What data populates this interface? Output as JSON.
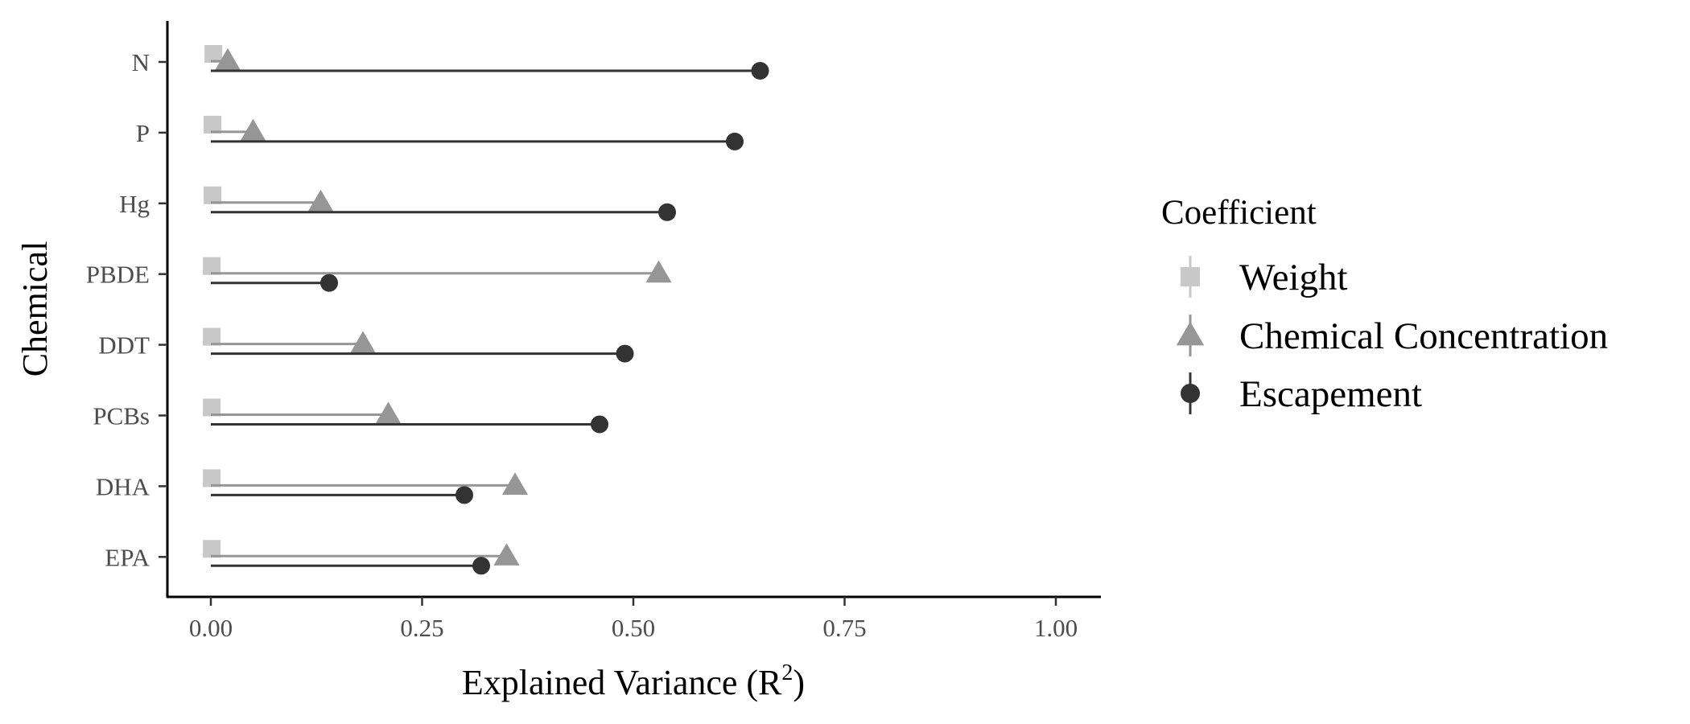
{
  "chart_data": {
    "type": "lollipop",
    "xlabel": "Explained Variance (R",
    "xlabel_superscript": "2",
    "xlabel_suffix": ")",
    "ylabel": "Chemical",
    "xlim": [
      -0.05,
      1.05
    ],
    "xticks": [
      0,
      0.25,
      0.5,
      0.75,
      1.0
    ],
    "xtick_labels": [
      "0.00",
      "0.25",
      "0.50",
      "0.75",
      "1.00"
    ],
    "categories": [
      "N",
      "P",
      "Hg",
      "PBDE",
      "DDT",
      "PCBs",
      "DHA",
      "EPA"
    ],
    "series": [
      {
        "name": "Weight",
        "marker": "square",
        "color": "#c8c8c8",
        "values": [
          0.003,
          0.002,
          0.002,
          0.001,
          0.001,
          0.001,
          0.001,
          0.001
        ]
      },
      {
        "name": "Chemical Concentration",
        "marker": "triangle",
        "color": "#969696",
        "values": [
          0.02,
          0.05,
          0.13,
          0.53,
          0.18,
          0.21,
          0.36,
          0.35
        ]
      },
      {
        "name": "Escapement",
        "marker": "circle",
        "color": "#333333",
        "values": [
          0.65,
          0.62,
          0.54,
          0.14,
          0.49,
          0.46,
          0.3,
          0.32
        ]
      }
    ],
    "legend": {
      "title": "Coefficient",
      "position": "right"
    },
    "grid": false
  }
}
